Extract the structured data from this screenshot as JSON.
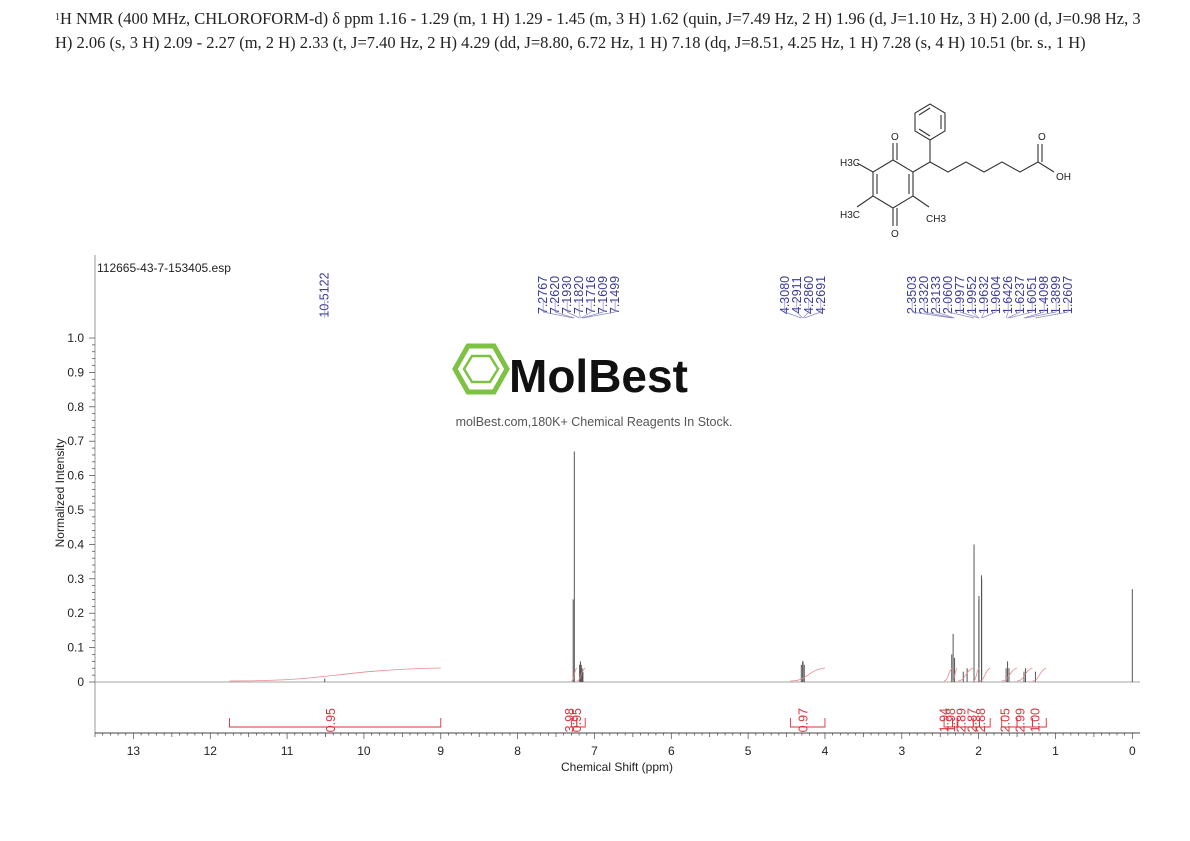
{
  "header": {
    "nucleus_sup": "1",
    "text": "H NMR (400 MHz, CHLOROFORM-d) δ ppm 1.16 - 1.29 (m, 1 H) 1.29 - 1.45 (m, 3 H) 1.62 (quin, J=7.49 Hz, 2 H) 1.96 (d, J=1.10 Hz, 3 H) 2.00 (d, J=0.98 Hz, 3 H) 2.06 (s, 3 H) 2.09 - 2.27 (m, 2 H) 2.33 (t, J=7.40 Hz, 2 H) 4.29 (dd, J=8.80, 6.72 Hz, 1 H) 7.18 (dq, J=8.51, 4.25 Hz, 1 H) 7.28 (s, 4 H) 10.51 (br. s., 1 H)"
  },
  "file_label": "112665-43-7-153405.esp",
  "logo": {
    "name": "MolBest",
    "tagline": "molBest.com,180K+ Chemical Reagents In Stock.",
    "color": "#7dc242"
  },
  "structure": {
    "labels": [
      "H3C",
      "H3C",
      "CH3",
      "O",
      "O",
      "O",
      "OH"
    ]
  },
  "chart_data": {
    "type": "line",
    "xlabel": "Chemical Shift (ppm)",
    "ylabel": "Normalized Intensity",
    "xlim": [
      13.5,
      -0.1
    ],
    "ylim": [
      0,
      1.0
    ],
    "x_ticks": [
      13,
      12,
      11,
      10,
      9,
      8,
      7,
      6,
      5,
      4,
      3,
      2,
      1,
      0
    ],
    "y_ticks": [
      0,
      0.1,
      0.2,
      0.3,
      0.4,
      0.5,
      0.6,
      0.7,
      0.8,
      0.9,
      1.0
    ],
    "y_tick_labels": [
      "0",
      "0.1",
      "0.2",
      "0.3",
      "0.4",
      "0.5",
      "0.6",
      "0.7",
      "0.8",
      "0.9",
      "1.0"
    ],
    "peaks": [
      {
        "x": 10.51,
        "y": 0.01
      },
      {
        "x": 7.2767,
        "y": 0.24
      },
      {
        "x": 7.262,
        "y": 0.67
      },
      {
        "x": 7.193,
        "y": 0.05
      },
      {
        "x": 7.182,
        "y": 0.06
      },
      {
        "x": 7.1716,
        "y": 0.05
      },
      {
        "x": 7.1609,
        "y": 0.04
      },
      {
        "x": 7.1499,
        "y": 0.03
      },
      {
        "x": 4.308,
        "y": 0.05
      },
      {
        "x": 4.2911,
        "y": 0.06
      },
      {
        "x": 4.286,
        "y": 0.06
      },
      {
        "x": 4.2691,
        "y": 0.05
      },
      {
        "x": 2.3503,
        "y": 0.08
      },
      {
        "x": 2.332,
        "y": 0.14
      },
      {
        "x": 2.3133,
        "y": 0.07
      },
      {
        "x": 2.2,
        "y": 0.03
      },
      {
        "x": 2.15,
        "y": 0.04
      },
      {
        "x": 2.06,
        "y": 0.4
      },
      {
        "x": 1.9977,
        "y": 0.24
      },
      {
        "x": 1.9952,
        "y": 0.25
      },
      {
        "x": 1.9632,
        "y": 0.31
      },
      {
        "x": 1.9604,
        "y": 0.3
      },
      {
        "x": 1.6426,
        "y": 0.04
      },
      {
        "x": 1.6237,
        "y": 0.06
      },
      {
        "x": 1.6051,
        "y": 0.04
      },
      {
        "x": 1.4098,
        "y": 0.03
      },
      {
        "x": 1.3899,
        "y": 0.04
      },
      {
        "x": 1.2607,
        "y": 0.03
      },
      {
        "x": 0.0,
        "y": 0.27
      }
    ],
    "peak_labels": [
      {
        "x": 10.51,
        "text": "10.5122"
      },
      {
        "x": 7.2767,
        "text": "7.2767"
      },
      {
        "x": 7.262,
        "text": "7.2620"
      },
      {
        "x": 7.193,
        "text": "7.1930"
      },
      {
        "x": 7.182,
        "text": "7.1820"
      },
      {
        "x": 7.1716,
        "text": "7.1716"
      },
      {
        "x": 7.1609,
        "text": "7.1609"
      },
      {
        "x": 7.1499,
        "text": "7.1499"
      },
      {
        "x": 4.308,
        "text": "4.3080"
      },
      {
        "x": 4.2911,
        "text": "4.2911"
      },
      {
        "x": 4.286,
        "text": "4.2860"
      },
      {
        "x": 4.2691,
        "text": "4.2691"
      },
      {
        "x": 2.3503,
        "text": "2.3503"
      },
      {
        "x": 2.332,
        "text": "2.3320"
      },
      {
        "x": 2.3133,
        "text": "2.3133"
      },
      {
        "x": 2.06,
        "text": "2.0600"
      },
      {
        "x": 1.9977,
        "text": "1.9977"
      },
      {
        "x": 1.9952,
        "text": "1.9952"
      },
      {
        "x": 1.9632,
        "text": "1.9632"
      },
      {
        "x": 1.9604,
        "text": "1.9604"
      },
      {
        "x": 1.6426,
        "text": "1.6426"
      },
      {
        "x": 1.6237,
        "text": "1.6237"
      },
      {
        "x": 1.6051,
        "text": "1.6051"
      },
      {
        "x": 1.4098,
        "text": "1.4098"
      },
      {
        "x": 1.3899,
        "text": "1.3899"
      },
      {
        "x": 1.2607,
        "text": "1.2607"
      }
    ],
    "integrals": [
      {
        "from": 11.75,
        "to": 9.0,
        "value": "0.95"
      },
      {
        "from": 7.3,
        "to": 7.23,
        "value": "3.98"
      },
      {
        "from": 7.23,
        "to": 7.12,
        "value": "0.95"
      },
      {
        "from": 4.45,
        "to": 4.0,
        "value": "0.97"
      },
      {
        "from": 2.45,
        "to": 2.34,
        "value": "1.94"
      },
      {
        "from": 2.34,
        "to": 2.28,
        "value": "1.98"
      },
      {
        "from": 2.27,
        "to": 2.07,
        "value": "2.89"
      },
      {
        "from": 2.07,
        "to": 1.99,
        "value": "2.87"
      },
      {
        "from": 1.99,
        "to": 1.85,
        "value": "2.88"
      },
      {
        "from": 1.7,
        "to": 1.5,
        "value": "2.05"
      },
      {
        "from": 1.5,
        "to": 1.3,
        "value": "2.99"
      },
      {
        "from": 1.3,
        "to": 1.12,
        "value": "1.00"
      }
    ]
  }
}
